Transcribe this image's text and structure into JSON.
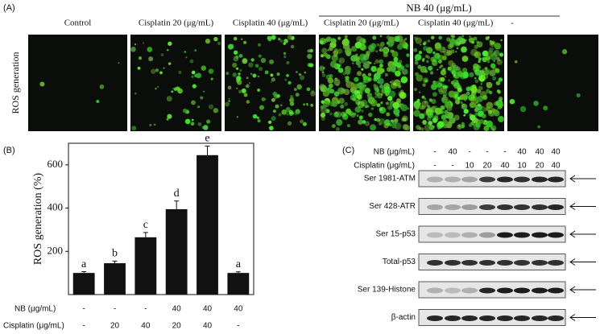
{
  "panel_a": {
    "label": "(A)",
    "group_label": "NB 40 (μg/mL)",
    "column_labels": [
      "Control",
      "Cisplatin 20 (μg/mL)",
      "Cisplatin 40 (μg/mL)",
      "Cisplatin 20 (μg/mL)",
      "Cisplatin 40 (μg/mL)",
      "-"
    ],
    "row_label": "ROS generation"
  },
  "chart_data": {
    "type": "bar",
    "panel_label": "(B)",
    "ylabel": "ROS generation (%)",
    "values": [
      100,
      145,
      265,
      395,
      645,
      100
    ],
    "errors": [
      6,
      10,
      22,
      38,
      42,
      5
    ],
    "annotations": [
      "a",
      "b",
      "c",
      "d",
      "e",
      "a"
    ],
    "color": "#111111",
    "ylim": [
      0,
      700
    ],
    "yticks": [
      200,
      400,
      600
    ],
    "treatment_rows": [
      {
        "name": "NB (μg/mL)",
        "values": [
          "-",
          "-",
          "-",
          "40",
          "40",
          "40"
        ]
      },
      {
        "name": "Cisplatin (μg/mL)",
        "values": [
          "-",
          "20",
          "40",
          "20",
          "40",
          "-"
        ]
      }
    ]
  },
  "panel_c": {
    "label": "(C)",
    "treatment_rows": [
      {
        "name": "NB (μg/mL)",
        "values": [
          "-",
          "40",
          "-",
          "-",
          "-",
          "40",
          "40",
          "40"
        ]
      },
      {
        "name": "Cisplatin (μg/mL)",
        "values": [
          "-",
          "-",
          "10",
          "20",
          "40",
          "10",
          "20",
          "40"
        ]
      }
    ],
    "blots": [
      "Ser 1981-ATM",
      "Ser 428-ATR",
      "Ser 15-p53",
      "Total-p53",
      "Ser 139-Histone",
      "β-actin"
    ]
  }
}
